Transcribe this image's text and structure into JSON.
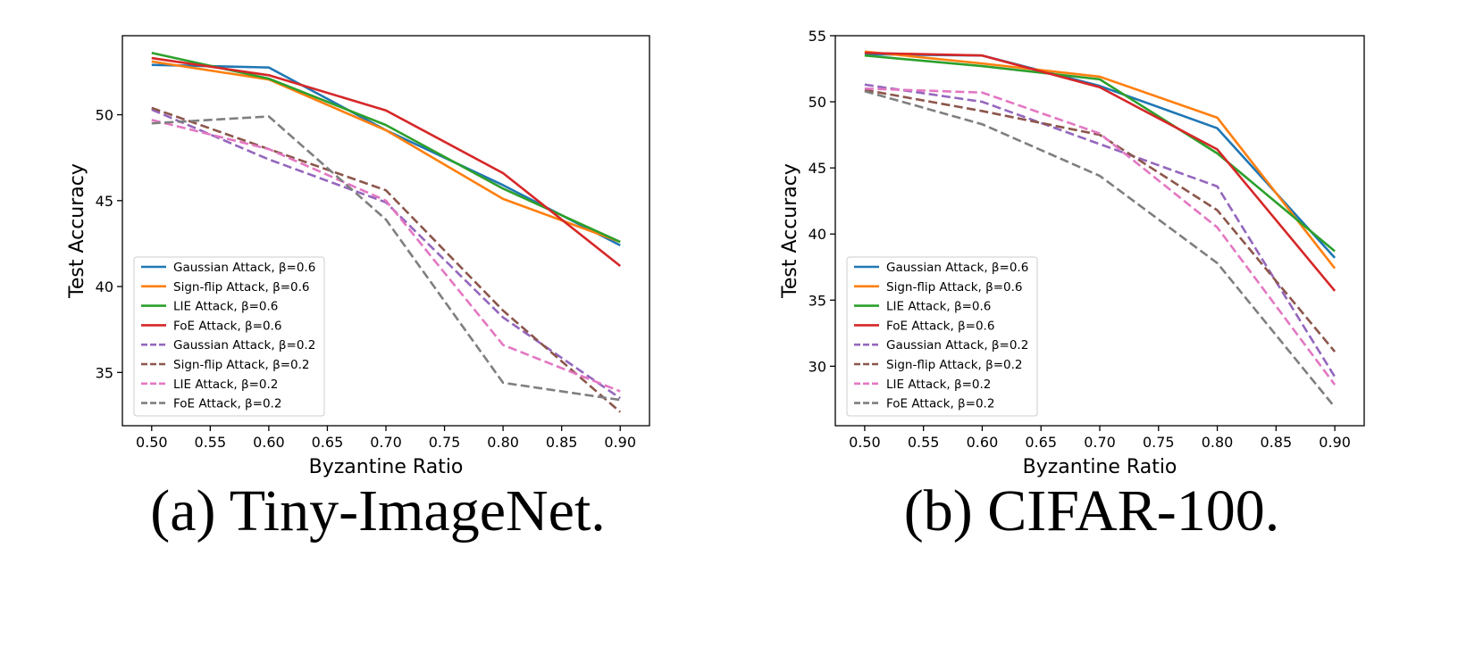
{
  "chart_data": [
    {
      "type": "line",
      "caption": "(a) Tiny-ImageNet.",
      "xlabel": "Byzantine Ratio",
      "ylabel": "Test Accuracy",
      "x": [
        0.5,
        0.6,
        0.7,
        0.8,
        0.9
      ],
      "xlim": [
        0.475,
        0.925
      ],
      "ylim": [
        31.9,
        54.6
      ],
      "xticks": [
        "0.50",
        "0.55",
        "0.60",
        "0.65",
        "0.70",
        "0.75",
        "0.80",
        "0.85",
        "0.90"
      ],
      "yticks": [
        "35",
        "40",
        "45",
        "50"
      ],
      "grid": false,
      "legend_position": "lower-left",
      "series": [
        {
          "name": "Gaussian Attack, β=0.6",
          "color": "#1f77b4",
          "dash": false,
          "values": [
            52.9,
            52.75,
            49.1,
            45.9,
            42.4
          ]
        },
        {
          "name": "Sign-flip Attack, β=0.6",
          "color": "#ff7f0e",
          "dash": false,
          "values": [
            53.1,
            52.05,
            49.1,
            45.1,
            42.6
          ]
        },
        {
          "name": "LIE Attack, β=0.6",
          "color": "#2ca02c",
          "dash": false,
          "values": [
            53.6,
            52.1,
            49.4,
            45.7,
            42.6
          ]
        },
        {
          "name": "FoE Attack, β=0.6",
          "color": "#d62728",
          "dash": false,
          "values": [
            53.3,
            52.3,
            50.25,
            46.6,
            41.2
          ]
        },
        {
          "name": "Gaussian Attack, β=0.2",
          "color": "#9467bd",
          "dash": true,
          "values": [
            50.3,
            47.4,
            44.9,
            38.2,
            33.5
          ]
        },
        {
          "name": "Sign-flip Attack, β=0.2",
          "color": "#8c564b",
          "dash": true,
          "values": [
            50.4,
            48.0,
            45.6,
            38.6,
            32.7
          ]
        },
        {
          "name": "LIE Attack, β=0.2",
          "color": "#e377c2",
          "dash": true,
          "values": [
            49.7,
            48.0,
            45.0,
            36.6,
            33.9
          ]
        },
        {
          "name": "FoE Attack, β=0.2",
          "color": "#7f7f7f",
          "dash": true,
          "values": [
            49.5,
            49.9,
            43.9,
            34.4,
            33.4
          ]
        }
      ]
    },
    {
      "type": "line",
      "caption": "(b) CIFAR-100.",
      "xlabel": "Byzantine Ratio",
      "ylabel": "Test Accuracy",
      "x": [
        0.5,
        0.6,
        0.7,
        0.8,
        0.9
      ],
      "xlim": [
        0.475,
        0.925
      ],
      "ylim": [
        25.5,
        55.0
      ],
      "xticks": [
        "0.50",
        "0.55",
        "0.60",
        "0.65",
        "0.70",
        "0.75",
        "0.80",
        "0.85",
        "0.90"
      ],
      "yticks": [
        "30",
        "35",
        "40",
        "45",
        "50",
        "55"
      ],
      "grid": false,
      "legend_position": "lower-left",
      "series": [
        {
          "name": "Gaussian Attack, β=0.6",
          "color": "#1f77b4",
          "dash": false,
          "values": [
            53.6,
            53.5,
            51.2,
            48.0,
            38.2
          ]
        },
        {
          "name": "Sign-flip Attack, β=0.6",
          "color": "#ff7f0e",
          "dash": false,
          "values": [
            53.8,
            52.9,
            51.9,
            48.8,
            37.4
          ]
        },
        {
          "name": "LIE Attack, β=0.6",
          "color": "#2ca02c",
          "dash": false,
          "values": [
            53.5,
            52.7,
            51.7,
            46.1,
            38.7
          ]
        },
        {
          "name": "FoE Attack, β=0.6",
          "color": "#d62728",
          "dash": false,
          "values": [
            53.7,
            53.5,
            51.1,
            46.4,
            35.7
          ]
        },
        {
          "name": "Gaussian Attack, β=0.2",
          "color": "#9467bd",
          "dash": true,
          "values": [
            51.3,
            50.0,
            46.8,
            43.6,
            29.2
          ]
        },
        {
          "name": "Sign-flip Attack, β=0.2",
          "color": "#8c564b",
          "dash": true,
          "values": [
            50.9,
            49.3,
            47.5,
            41.8,
            31.1
          ]
        },
        {
          "name": "LIE Attack, β=0.2",
          "color": "#e377c2",
          "dash": true,
          "values": [
            51.0,
            50.7,
            47.6,
            40.5,
            28.6
          ]
        },
        {
          "name": "FoE Attack, β=0.2",
          "color": "#7f7f7f",
          "dash": true,
          "values": [
            50.8,
            48.3,
            44.4,
            37.8,
            26.9
          ]
        }
      ]
    }
  ]
}
